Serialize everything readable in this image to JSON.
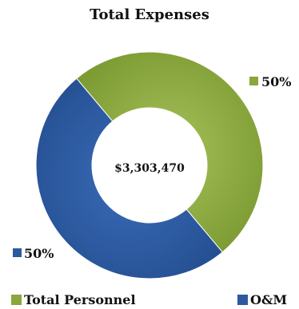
{
  "chart_data": {
    "type": "pie",
    "title": "Total Expenses",
    "center_label": "$3,303,470",
    "categories": [
      "Total Personnel",
      "O&M"
    ],
    "values": [
      50,
      50
    ],
    "value_labels": [
      "50%",
      "50%"
    ],
    "colors": [
      "#8aa63c",
      "#2b5aa0"
    ],
    "donut": true,
    "legend": "bottom"
  }
}
